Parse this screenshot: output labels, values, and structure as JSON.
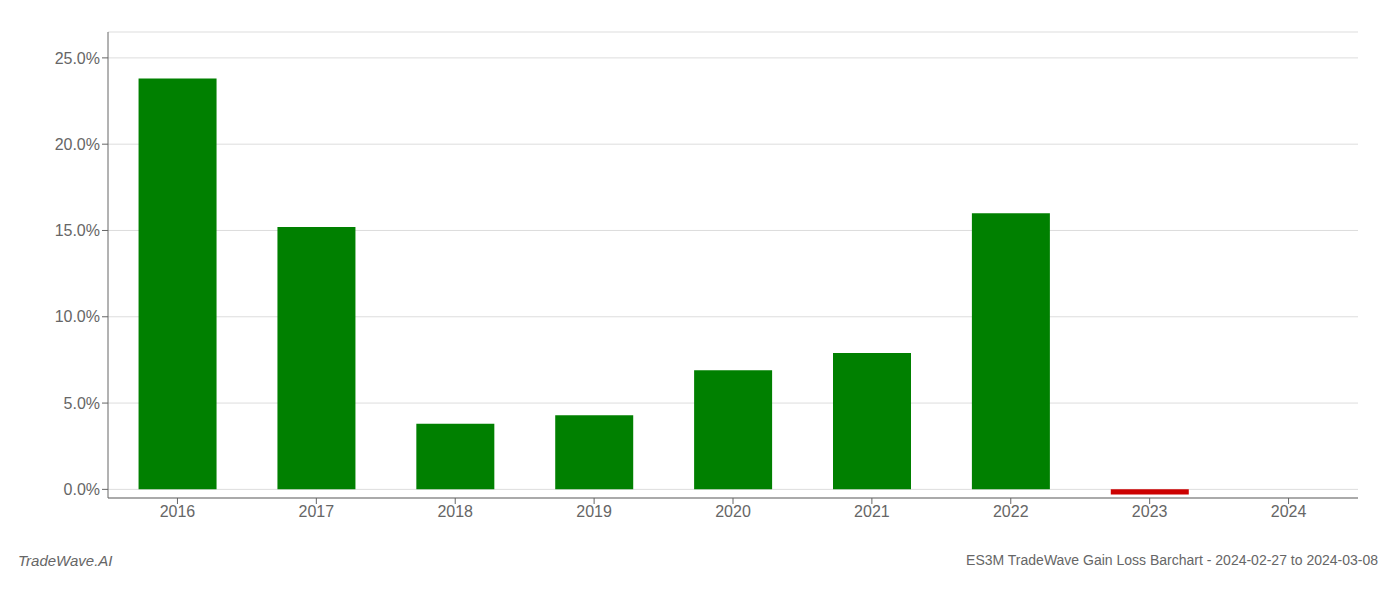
{
  "chart_data": {
    "type": "bar",
    "categories": [
      "2016",
      "2017",
      "2018",
      "2019",
      "2020",
      "2021",
      "2022",
      "2023",
      "2024"
    ],
    "values": [
      0.238,
      0.152,
      0.038,
      0.043,
      0.069,
      0.079,
      0.16,
      -0.003,
      0.0
    ],
    "colors": [
      "#008000",
      "#008000",
      "#008000",
      "#008000",
      "#008000",
      "#008000",
      "#008000",
      "#cc0000",
      "#008000"
    ],
    "ylim": [
      -0.005,
      0.265
    ],
    "yticks": [
      {
        "value": 0.0,
        "label": "0.0%"
      },
      {
        "value": 0.05,
        "label": "5.0%"
      },
      {
        "value": 0.1,
        "label": "10.0%"
      },
      {
        "value": 0.15,
        "label": "15.0%"
      },
      {
        "value": 0.2,
        "label": "20.0%"
      },
      {
        "value": 0.25,
        "label": "25.0%"
      }
    ],
    "grid": true,
    "annotations": [
      "TradeWave.AI",
      "ES3M TradeWave Gain Loss Barchart - 2024-02-27 to 2024-03-08"
    ]
  }
}
